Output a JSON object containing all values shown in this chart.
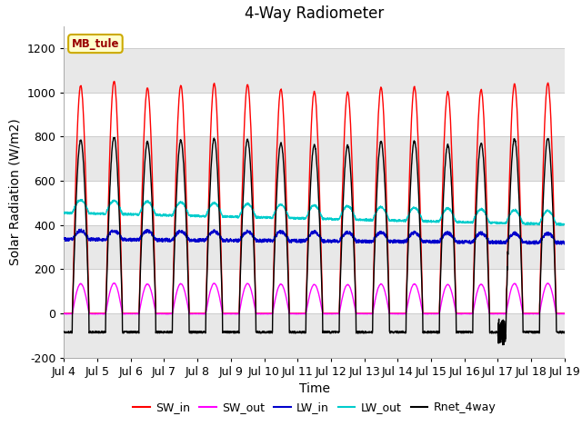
{
  "title": "4-Way Radiometer",
  "xlabel": "Time",
  "ylabel": "Solar Radiation (W/m2)",
  "ylim": [
    -200,
    1300
  ],
  "yticks": [
    -200,
    0,
    200,
    400,
    600,
    800,
    1000,
    1200
  ],
  "xtick_labels": [
    "Jul 4",
    "Jul 5",
    "Jul 6",
    "Jul 7",
    "Jul 8",
    "Jul 9",
    "Jul 10",
    "Jul 11",
    "Jul 12",
    "Jul 13",
    "Jul 14",
    "Jul 15",
    "Jul 16",
    "Jul 17",
    "Jul 18",
    "Jul 19"
  ],
  "station_label": "MB_tule",
  "colors": {
    "SW_in": "#ff0000",
    "SW_out": "#ff00ff",
    "LW_in": "#0000cc",
    "LW_out": "#00cccc",
    "Rnet_4way": "#000000"
  },
  "n_days": 15,
  "background_color": "#ffffff",
  "plot_bg": "#ffffff",
  "band_color": "#e8e8e8",
  "grid_color": "#cccccc"
}
